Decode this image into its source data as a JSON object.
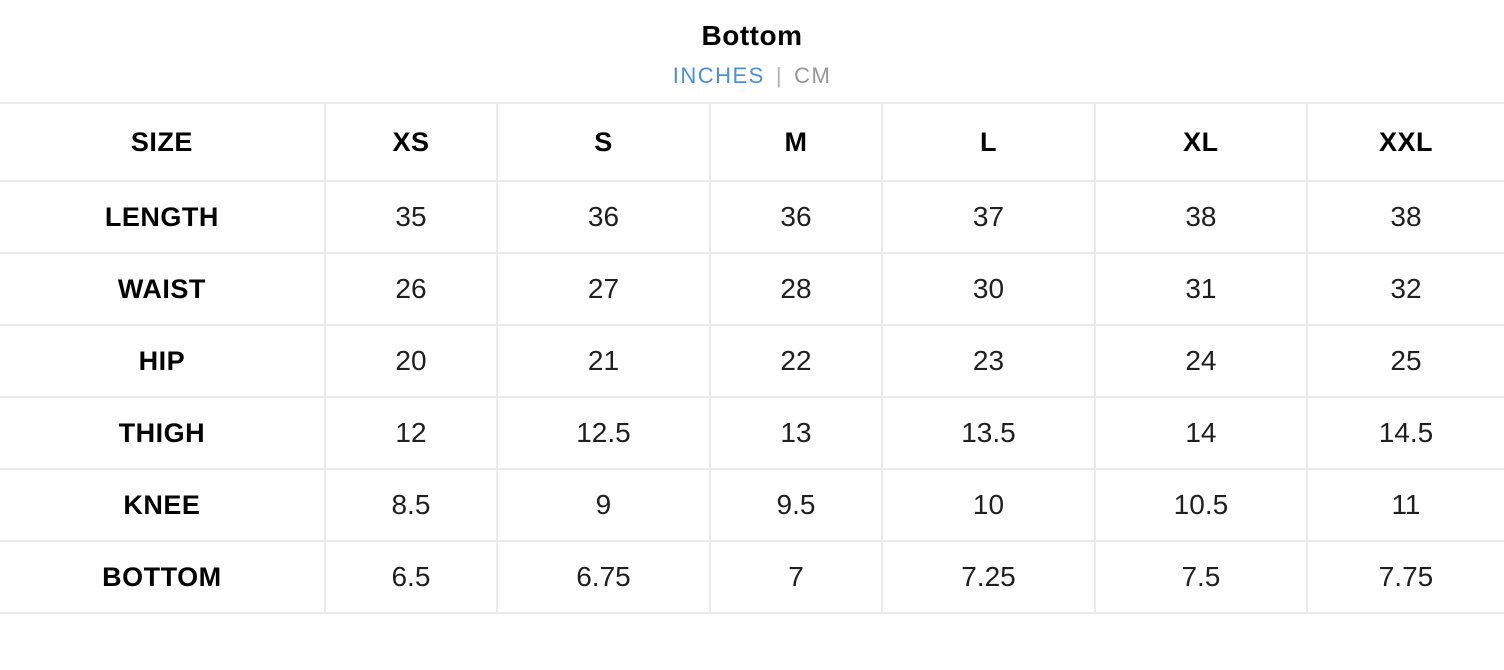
{
  "header": {
    "title": "Bottom",
    "units": {
      "active_label": "INCHES",
      "separator": "|",
      "inactive_label": "CM"
    },
    "accent_color": "#4a90e2",
    "inactive_color": "#969696"
  },
  "chart_data": {
    "type": "table",
    "title": "Bottom",
    "unit": "INCHES",
    "columns": [
      "SIZE",
      "XS",
      "S",
      "M",
      "L",
      "XL",
      "XXL"
    ],
    "rows": [
      {
        "label": "LENGTH",
        "values": [
          "35",
          "36",
          "36",
          "37",
          "38",
          "38"
        ]
      },
      {
        "label": "WAIST",
        "values": [
          "26",
          "27",
          "28",
          "30",
          "31",
          "32"
        ]
      },
      {
        "label": "HIP",
        "values": [
          "20",
          "21",
          "22",
          "23",
          "24",
          "25"
        ]
      },
      {
        "label": "THIGH",
        "values": [
          "12",
          "12.5",
          "13",
          "13.5",
          "14",
          "14.5"
        ]
      },
      {
        "label": "KNEE",
        "values": [
          "8.5",
          "9",
          "9.5",
          "10",
          "10.5",
          "11"
        ]
      },
      {
        "label": "BOTTOM",
        "values": [
          "6.5",
          "6.75",
          "7",
          "7.25",
          "7.5",
          "7.75"
        ]
      }
    ],
    "style": {
      "border_color": "#ebebeb",
      "text_color": "#1f1f1f",
      "label_color": "#030303"
    }
  }
}
